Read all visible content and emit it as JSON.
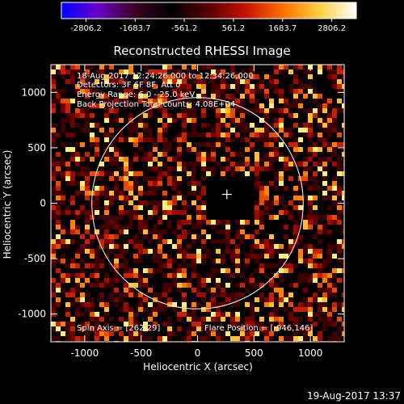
{
  "colorbar": {
    "ticks": [
      "-2806.2",
      "-1683.7",
      "-561.2",
      "561.2",
      "1683.7",
      "2806.2"
    ],
    "colors": [
      "#0000ff",
      "#6a00c8",
      "#3a0020",
      "#000000",
      "#5a0000",
      "#c81000",
      "#ff7000",
      "#ffd040",
      "#ffffff"
    ]
  },
  "plot": {
    "title": "Reconstructed RHESSI Image",
    "xlabel": "Heliocentric X (arcsec)",
    "ylabel": "Heliocentric Y (arcsec)",
    "xticks": [
      "-1000",
      "-500",
      "0",
      "500",
      "1000"
    ],
    "yticks": [
      "1000",
      "500",
      "0",
      "-500",
      "-1000"
    ],
    "xlim": [
      -1300,
      1300
    ],
    "ylim": [
      -1250,
      1250
    ],
    "limb_radius_arcsec": 945,
    "center_marker": [
      260,
      80
    ]
  },
  "annotations": {
    "time_range": "18-Aug-2017 12:24:26.000 to 12:34:26.000",
    "detectors": "Detectors: 3F 6F 8F, Att 0",
    "energy": "Energy Range: 6.0 - 25.0 keV",
    "method": "Back Projection    Total counts: 4.08E+04",
    "spin_axis": "Spin Axis = [262,29]",
    "flare_position": "Flare Position = [-946,146]"
  },
  "footer": {
    "timestamp": "19-Aug-2017 13:37"
  }
}
